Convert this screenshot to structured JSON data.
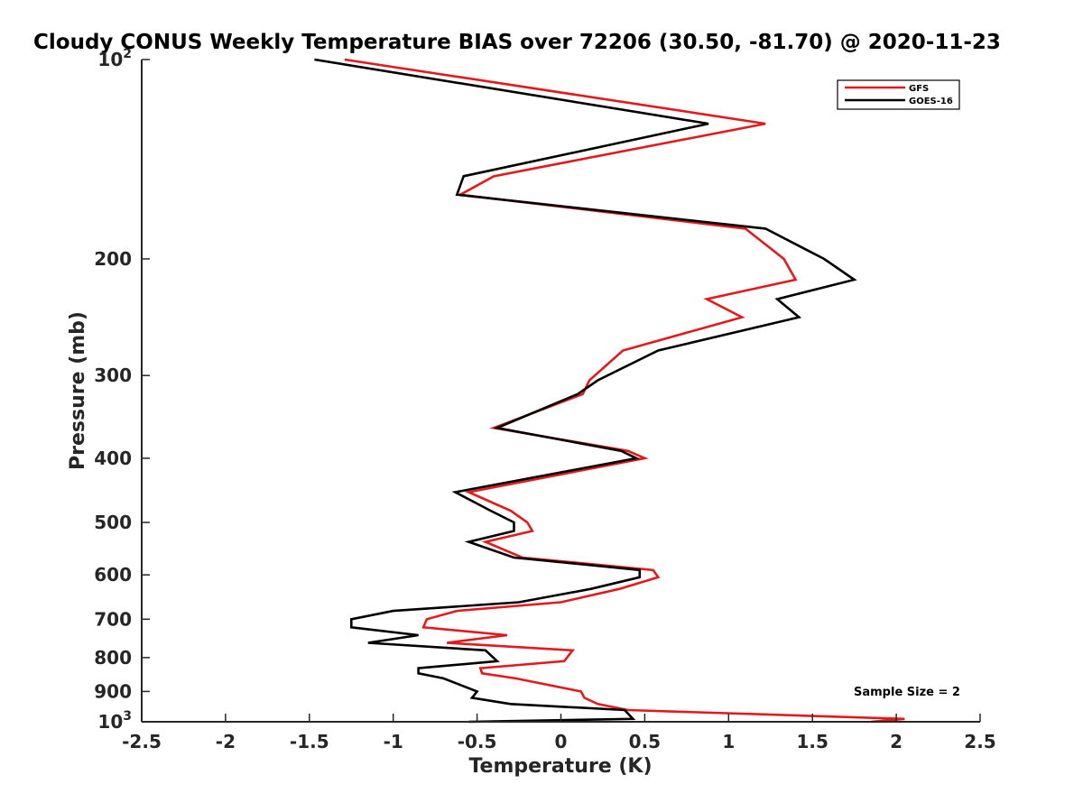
{
  "chart_data": {
    "type": "line",
    "title": "Cloudy CONUS Weekly Temperature BIAS over 72206 (30.50, -81.70) @ 2020-11-23",
    "xlabel": "Temperature (K)",
    "ylabel": "Pressure (mb)",
    "xlim": [
      -2.5,
      2.5
    ],
    "ylim": [
      100,
      1000
    ],
    "yscale": "log",
    "y_reversed": true,
    "grid": false,
    "legend_position": "top-right",
    "x_ticks": [
      "-2.5",
      "-2",
      "-1.5",
      "-1",
      "-0.5",
      "0",
      "0.5",
      "1",
      "1.5",
      "2",
      "2.5"
    ],
    "x_tick_values": [
      -2.5,
      -2,
      -1.5,
      -1,
      -0.5,
      0,
      0.5,
      1,
      1.5,
      2,
      2.5
    ],
    "y_ticks": [
      {
        "value": 100,
        "base": "10",
        "exp": "2"
      },
      {
        "value": 200,
        "label": "200"
      },
      {
        "value": 300,
        "label": "300"
      },
      {
        "value": 400,
        "label": "400"
      },
      {
        "value": 500,
        "label": "500"
      },
      {
        "value": 600,
        "label": "600"
      },
      {
        "value": 700,
        "label": "700"
      },
      {
        "value": 800,
        "label": "800"
      },
      {
        "value": 900,
        "label": "900"
      },
      {
        "value": 1000,
        "base": "10",
        "exp": "3"
      }
    ],
    "annotation": "Sample Size = 2",
    "series": [
      {
        "name": "GFS",
        "color": "#e31a1c",
        "points": [
          [
            -1.29,
            100
          ],
          [
            1.22,
            125
          ],
          [
            -0.4,
            150
          ],
          [
            -0.6,
            160
          ],
          [
            1.1,
            180
          ],
          [
            1.33,
            200
          ],
          [
            1.4,
            215
          ],
          [
            0.87,
            230
          ],
          [
            1.08,
            245
          ],
          [
            0.37,
            275
          ],
          [
            0.17,
            305
          ],
          [
            0.13,
            320
          ],
          [
            -0.4,
            360
          ],
          [
            0.4,
            390
          ],
          [
            0.5,
            400
          ],
          [
            -0.55,
            450
          ],
          [
            -0.3,
            480
          ],
          [
            -0.2,
            500
          ],
          [
            -0.17,
            515
          ],
          [
            -0.45,
            535
          ],
          [
            -0.23,
            565
          ],
          [
            0.55,
            590
          ],
          [
            0.58,
            605
          ],
          [
            0.35,
            630
          ],
          [
            0.0,
            660
          ],
          [
            -0.62,
            680
          ],
          [
            -0.8,
            700
          ],
          [
            -0.82,
            720
          ],
          [
            -0.32,
            740
          ],
          [
            -0.68,
            760
          ],
          [
            0.07,
            780
          ],
          [
            0.02,
            810
          ],
          [
            -0.48,
            830
          ],
          [
            -0.47,
            845
          ],
          [
            -0.27,
            860
          ],
          [
            0.12,
            900
          ],
          [
            0.14,
            920
          ],
          [
            0.22,
            940
          ],
          [
            0.4,
            960
          ],
          [
            2.05,
            990
          ],
          [
            1.85,
            1000
          ]
        ]
      },
      {
        "name": "GOES-16",
        "color": "#000000",
        "points": [
          [
            -1.47,
            100
          ],
          [
            0.88,
            125
          ],
          [
            -0.58,
            150
          ],
          [
            -0.62,
            160
          ],
          [
            1.22,
            180
          ],
          [
            1.57,
            200
          ],
          [
            1.75,
            215
          ],
          [
            1.29,
            230
          ],
          [
            1.42,
            245
          ],
          [
            0.58,
            275
          ],
          [
            0.22,
            305
          ],
          [
            0.1,
            320
          ],
          [
            -0.38,
            360
          ],
          [
            0.36,
            390
          ],
          [
            0.45,
            400
          ],
          [
            -0.63,
            450
          ],
          [
            -0.42,
            480
          ],
          [
            -0.28,
            500
          ],
          [
            -0.28,
            515
          ],
          [
            -0.55,
            535
          ],
          [
            -0.28,
            565
          ],
          [
            0.47,
            590
          ],
          [
            0.47,
            605
          ],
          [
            0.18,
            630
          ],
          [
            -0.25,
            660
          ],
          [
            -1.0,
            680
          ],
          [
            -1.25,
            700
          ],
          [
            -1.25,
            720
          ],
          [
            -0.85,
            740
          ],
          [
            -1.15,
            760
          ],
          [
            -0.45,
            780
          ],
          [
            -0.38,
            810
          ],
          [
            -0.85,
            830
          ],
          [
            -0.85,
            845
          ],
          [
            -0.7,
            860
          ],
          [
            -0.5,
            900
          ],
          [
            -0.53,
            920
          ],
          [
            -0.3,
            940
          ],
          [
            0.38,
            960
          ],
          [
            0.43,
            990
          ],
          [
            -0.55,
            1000
          ]
        ]
      }
    ]
  }
}
